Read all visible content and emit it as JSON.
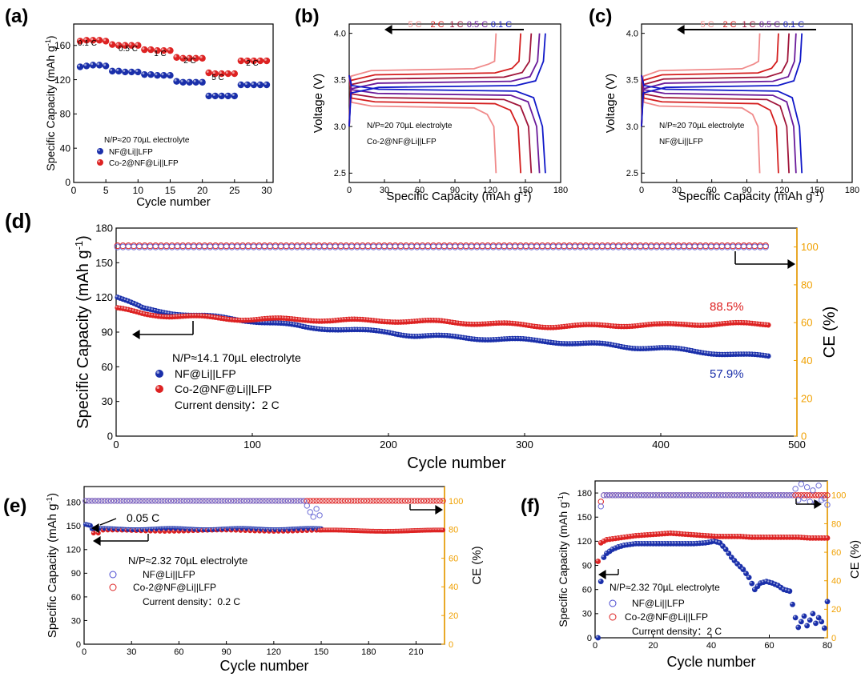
{
  "colors": {
    "blue": "#1a2faa",
    "red": "#dd2222",
    "orange": "#f0a000",
    "rate_01": "#1018c8",
    "rate_05": "#6a1a9a",
    "rate_1": "#a0153a",
    "rate_2": "#d41e1e",
    "rate_5": "#f08a8a"
  },
  "chart_data": [
    {
      "panel": "a",
      "panel_label": "(a)",
      "type": "scatter",
      "xlabel": "Cycle number",
      "ylabel": "Specific Capacity (mAh g",
      "ylabel_sup": "-1",
      "ylabel_close": ")",
      "xlim": [
        0,
        31
      ],
      "ylim": [
        0,
        185
      ],
      "xticks": [
        "0",
        "5",
        "10",
        "15",
        "20",
        "25",
        "30"
      ],
      "yticks": [
        "0",
        "40",
        "80",
        "120",
        "160"
      ],
      "rate_labels": [
        "0.1 C",
        "0.5 C",
        "1 C",
        "2 C",
        "5 C",
        "2 C"
      ],
      "annotation": "N/P≈20  70µL electrolyte",
      "legend": [
        "NF@Li||LFP",
        "Co-2@NF@Li||LFP"
      ],
      "series": [
        {
          "name": "NF@Li||LFP",
          "color": "blue",
          "x": [
            1,
            2,
            3,
            4,
            5,
            6,
            7,
            8,
            9,
            10,
            11,
            12,
            13,
            14,
            15,
            16,
            17,
            18,
            19,
            20,
            21,
            22,
            23,
            24,
            25,
            26,
            27,
            28,
            29,
            30
          ],
          "values": [
            135,
            136,
            137,
            137,
            136,
            130,
            130,
            129,
            129,
            129,
            126,
            126,
            125,
            125,
            125,
            118,
            117,
            117,
            117,
            117,
            101,
            101,
            101,
            101,
            101,
            114,
            114,
            114,
            114,
            114
          ]
        },
        {
          "name": "Co-2@NF@Li||LFP",
          "color": "red",
          "x": [
            1,
            2,
            3,
            4,
            5,
            6,
            7,
            8,
            9,
            10,
            11,
            12,
            13,
            14,
            15,
            16,
            17,
            18,
            19,
            20,
            21,
            22,
            23,
            24,
            25,
            26,
            27,
            28,
            29,
            30
          ],
          "values": [
            165,
            166,
            166,
            166,
            165,
            161,
            160,
            160,
            160,
            160,
            155,
            155,
            154,
            154,
            154,
            146,
            145,
            145,
            145,
            145,
            128,
            127,
            127,
            127,
            127,
            142,
            142,
            142,
            142,
            142
          ]
        }
      ]
    },
    {
      "panel": "b",
      "panel_label": "(b)",
      "type": "line",
      "xlabel": "Specific Capacity (mAh g",
      "xlabel_sup": "-1",
      "xlabel_close": ")",
      "ylabel": "Voltage (V)",
      "xlim": [
        0,
        180
      ],
      "ylim": [
        2.4,
        4.1
      ],
      "xticks": [
        "0",
        "30",
        "60",
        "90",
        "120",
        "150",
        "180"
      ],
      "yticks": [
        "2.5",
        "3.0",
        "3.5",
        "4.0"
      ],
      "rates": [
        "5 C",
        "2 C",
        "1 C",
        "0.5 C",
        "0.1 C"
      ],
      "rate_colors": [
        "rate_5",
        "rate_2",
        "rate_1",
        "rate_05",
        "rate_01"
      ],
      "capacities": [
        125,
        146,
        155,
        162,
        167
      ],
      "annotation_1": "N/P≈20  70µL electrolyte",
      "annotation_2": "Co-2@NF@Li||LFP"
    },
    {
      "panel": "c",
      "panel_label": "(c)",
      "type": "line",
      "xlabel": "Specific Capacity (mAh g",
      "xlabel_sup": "-1",
      "xlabel_close": ")",
      "ylabel": "Voltage (V)",
      "xlim": [
        0,
        180
      ],
      "ylim": [
        2.4,
        4.1
      ],
      "xticks": [
        "0",
        "30",
        "60",
        "90",
        "120",
        "150",
        "180"
      ],
      "yticks": [
        "2.5",
        "3.0",
        "3.5",
        "4.0"
      ],
      "rates": [
        "5 C",
        "2 C",
        "1 C",
        "0.5 C",
        "0.1 C"
      ],
      "rate_colors": [
        "rate_5",
        "rate_2",
        "rate_1",
        "rate_05",
        "rate_01"
      ],
      "capacities": [
        101,
        117,
        126,
        132,
        137
      ],
      "annotation_1": "N/P≈20  70µL electrolyte",
      "annotation_2": "NF@Li||LFP"
    },
    {
      "panel": "d",
      "panel_label": "(d)",
      "type": "scatter",
      "xlabel": "Cycle number",
      "ylabel": "Specific Capacity (mAh g",
      "ylabel_sup": "-1",
      "ylabel_close": ")",
      "y2label": "CE (%)",
      "xlim": [
        0,
        500
      ],
      "ylim": [
        0,
        180
      ],
      "y2lim": [
        0,
        110
      ],
      "xticks": [
        "0",
        "100",
        "200",
        "300",
        "400",
        "500"
      ],
      "yticks": [
        "0",
        "30",
        "60",
        "90",
        "120",
        "150",
        "180"
      ],
      "y2ticks": [
        "0",
        "20",
        "40",
        "60",
        "80",
        "100"
      ],
      "annotation": "N/P≈14.1  70µL electrolyte",
      "legend": [
        "NF@Li||LFP",
        "Co-2@NF@Li||LFP"
      ],
      "current_density": "Current density：2 C",
      "retention_red": "88.5%",
      "retention_blue": "57.9%",
      "ce_value": 100,
      "series": [
        {
          "name": "NF@Li||LFP",
          "color": "blue",
          "x": [
            1,
            20,
            40,
            60,
            80,
            100,
            120,
            140,
            160,
            180,
            200,
            220,
            240,
            260,
            280,
            300,
            320,
            340,
            360,
            380,
            400,
            420,
            440,
            460,
            480
          ],
          "values": [
            120,
            110,
            107,
            104,
            102,
            100,
            97,
            94,
            93,
            91,
            90,
            87,
            86,
            85,
            84,
            83,
            82,
            80,
            79,
            77,
            76,
            74,
            72,
            70,
            69
          ]
        },
        {
          "name": "Co-2@NF@Li||LFP",
          "color": "red",
          "x": [
            1,
            20,
            40,
            60,
            80,
            100,
            120,
            140,
            160,
            180,
            200,
            220,
            240,
            260,
            280,
            300,
            320,
            340,
            360,
            380,
            400,
            420,
            440,
            460,
            480
          ],
          "values": [
            110,
            106,
            104,
            103,
            102,
            101,
            101,
            101,
            100,
            100,
            100,
            99,
            99,
            98,
            97,
            96,
            95,
            95,
            96,
            96,
            96,
            97,
            97,
            97,
            97
          ]
        }
      ]
    },
    {
      "panel": "e",
      "panel_label": "(e)",
      "type": "scatter",
      "xlabel": "Cycle number",
      "ylabel": "Specific Capacity (mAh g",
      "ylabel_sup": "-1",
      "ylabel_close": ")",
      "y2label": "CE (%)",
      "xlim": [
        0,
        228
      ],
      "ylim": [
        0,
        200
      ],
      "y2lim": [
        0,
        110
      ],
      "xticks": [
        "0",
        "30",
        "60",
        "90",
        "120",
        "150",
        "180",
        "210"
      ],
      "yticks": [
        "0",
        "30",
        "60",
        "90",
        "120",
        "150",
        "180"
      ],
      "y2ticks": [
        "0",
        "20",
        "40",
        "60",
        "80",
        "100"
      ],
      "annotation": "N/P≈2.32  70µL electrolyte",
      "legend": [
        "NF@Li||LFP",
        "Co-2@NF@Li||LFP"
      ],
      "current_density": "Current density：0.2 C",
      "rate_note": "0.05 C",
      "blue_capacity_end_cycle": 150,
      "blue_capacity": 146,
      "red_capacity": 144,
      "red_capacity_end_cycle": 228
    },
    {
      "panel": "f",
      "panel_label": "(f)",
      "type": "scatter",
      "xlabel": "Cycle number",
      "ylabel": "Specific Capacity (mAh g",
      "ylabel_sup": "-1",
      "ylabel_close": ")",
      "y2label": "CE (%)",
      "xlim": [
        0,
        80
      ],
      "ylim": [
        0,
        195
      ],
      "y2lim": [
        0,
        110
      ],
      "xticks": [
        "0",
        "20",
        "40",
        "60",
        "80"
      ],
      "yticks": [
        "0",
        "30",
        "60",
        "90",
        "120",
        "150",
        "180"
      ],
      "y2ticks": [
        "0",
        "20",
        "40",
        "60",
        "80",
        "100"
      ],
      "annotation": "N/P≈2.32  70µL electrolyte",
      "legend": [
        "NF@Li||LFP",
        "Co-2@NF@Li||LFP"
      ],
      "current_density": "Current density：2 C",
      "series": [
        {
          "name": "NF@Li||LFP",
          "color": "blue",
          "x": [
            1,
            2,
            3,
            4,
            6,
            8,
            10,
            14,
            18,
            22,
            26,
            30,
            34,
            38,
            41,
            43,
            45,
            47,
            49,
            51,
            53,
            55,
            57,
            59,
            61,
            63,
            65,
            67,
            69,
            70,
            71,
            72,
            73,
            74,
            75,
            76,
            77,
            78,
            79,
            80
          ],
          "values": [
            0,
            70,
            100,
            105,
            110,
            113,
            115,
            117,
            117,
            117,
            117,
            117,
            117,
            118,
            120,
            118,
            110,
            100,
            92,
            85,
            75,
            60,
            68,
            70,
            68,
            65,
            60,
            58,
            25,
            13,
            20,
            27,
            15,
            22,
            30,
            18,
            25,
            20,
            12,
            45
          ]
        },
        {
          "name": "Co-2@NF@Li||LFP",
          "color": "red",
          "x": [
            1,
            2,
            3,
            4,
            6,
            8,
            10,
            14,
            18,
            22,
            26,
            30,
            34,
            38,
            42,
            46,
            50,
            54,
            58,
            62,
            66,
            70,
            74,
            78,
            80
          ],
          "values": [
            95,
            118,
            120,
            122,
            123,
            124,
            125,
            127,
            128,
            129,
            130,
            129,
            128,
            127,
            126,
            126,
            126,
            125,
            125,
            125,
            125,
            125,
            124,
            124,
            124
          ]
        }
      ]
    }
  ]
}
